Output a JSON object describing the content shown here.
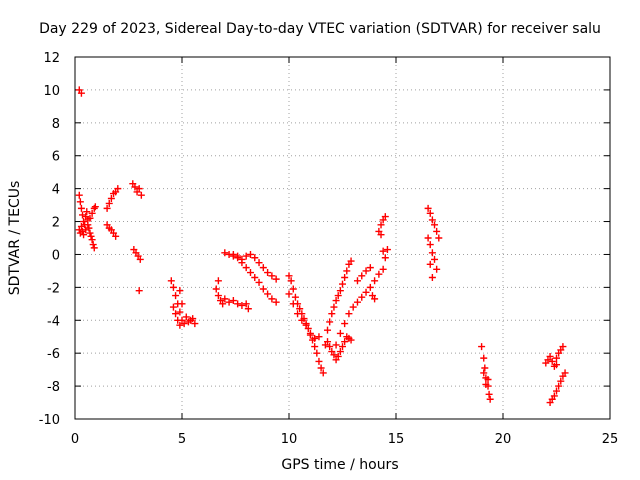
{
  "chart_data": {
    "type": "scatter",
    "title": "Day 229 of 2023, Sidereal Day-to-day VTEC variation (SDTVAR) for receiver salu",
    "xlabel": "GPS time / hours",
    "ylabel": "SDTVAR / TECUs",
    "xlim": [
      0,
      25
    ],
    "ylim": [
      -10,
      12
    ],
    "xticks": [
      0,
      5,
      10,
      15,
      20,
      25
    ],
    "yticks": [
      -10,
      -8,
      -6,
      -4,
      -2,
      0,
      2,
      4,
      6,
      8,
      10,
      12
    ],
    "grid": true,
    "marker": "+",
    "color": "#ff0000",
    "series": [
      {
        "name": "SDTVAR",
        "points": [
          [
            0.2,
            10.0
          ],
          [
            0.3,
            9.8
          ],
          [
            0.2,
            3.6
          ],
          [
            0.25,
            3.2
          ],
          [
            0.3,
            2.8
          ],
          [
            0.35,
            2.4
          ],
          [
            0.4,
            2.0
          ],
          [
            0.45,
            1.8
          ],
          [
            0.5,
            2.3
          ],
          [
            0.55,
            2.6
          ],
          [
            0.6,
            2.1
          ],
          [
            0.65,
            1.6
          ],
          [
            0.7,
            1.3
          ],
          [
            0.75,
            1.1
          ],
          [
            0.8,
            0.9
          ],
          [
            0.85,
            0.6
          ],
          [
            0.9,
            0.4
          ],
          [
            0.2,
            1.5
          ],
          [
            0.25,
            1.3
          ],
          [
            0.3,
            1.7
          ],
          [
            0.35,
            1.4
          ],
          [
            0.4,
            1.2
          ],
          [
            0.5,
            1.5
          ],
          [
            0.6,
            1.8
          ],
          [
            0.7,
            2.2
          ],
          [
            0.8,
            2.5
          ],
          [
            0.9,
            2.8
          ],
          [
            0.95,
            2.9
          ],
          [
            1.5,
            2.8
          ],
          [
            1.6,
            3.1
          ],
          [
            1.7,
            3.4
          ],
          [
            1.8,
            3.7
          ],
          [
            1.9,
            3.8
          ],
          [
            2.0,
            4.0
          ],
          [
            1.5,
            1.8
          ],
          [
            1.6,
            1.6
          ],
          [
            1.7,
            1.5
          ],
          [
            1.8,
            1.3
          ],
          [
            1.9,
            1.1
          ],
          [
            2.7,
            4.3
          ],
          [
            2.8,
            4.1
          ],
          [
            2.9,
            3.8
          ],
          [
            3.0,
            4.0
          ],
          [
            3.1,
            3.6
          ],
          [
            2.75,
            0.3
          ],
          [
            2.85,
            0.1
          ],
          [
            2.95,
            -0.1
          ],
          [
            3.05,
            -0.3
          ],
          [
            3.0,
            -2.2
          ],
          [
            4.5,
            -1.6
          ],
          [
            4.6,
            -2.0
          ],
          [
            4.7,
            -2.5
          ],
          [
            4.8,
            -3.0
          ],
          [
            4.9,
            -3.5
          ],
          [
            5.0,
            -4.0
          ],
          [
            5.1,
            -4.2
          ],
          [
            5.2,
            -3.8
          ],
          [
            5.3,
            -4.1
          ],
          [
            5.4,
            -4.0
          ],
          [
            5.5,
            -3.9
          ],
          [
            5.6,
            -4.2
          ],
          [
            4.6,
            -3.2
          ],
          [
            4.7,
            -3.6
          ],
          [
            4.8,
            -4.0
          ],
          [
            4.9,
            -4.3
          ],
          [
            5.0,
            -3.0
          ],
          [
            4.9,
            -2.2
          ],
          [
            6.6,
            -2.1
          ],
          [
            6.7,
            -2.5
          ],
          [
            6.8,
            -2.8
          ],
          [
            6.9,
            -3.0
          ],
          [
            7.0,
            -2.7
          ],
          [
            7.2,
            -2.9
          ],
          [
            7.4,
            -2.8
          ],
          [
            7.6,
            -3.0
          ],
          [
            7.8,
            -3.1
          ],
          [
            8.0,
            -3.0
          ],
          [
            8.1,
            -3.3
          ],
          [
            6.7,
            -1.6
          ],
          [
            7.0,
            0.1
          ],
          [
            7.2,
            0.0
          ],
          [
            7.4,
            -0.1
          ],
          [
            7.6,
            -0.2
          ],
          [
            7.8,
            -0.5
          ],
          [
            8.0,
            -0.8
          ],
          [
            8.2,
            -1.1
          ],
          [
            8.4,
            -1.4
          ],
          [
            8.6,
            -1.7
          ],
          [
            8.8,
            -2.1
          ],
          [
            9.0,
            -2.4
          ],
          [
            9.2,
            -2.7
          ],
          [
            9.4,
            -2.9
          ],
          [
            7.4,
            0.0
          ],
          [
            7.6,
            -0.1
          ],
          [
            7.8,
            -0.3
          ],
          [
            8.0,
            -0.1
          ],
          [
            8.2,
            0.0
          ],
          [
            8.4,
            -0.2
          ],
          [
            8.6,
            -0.5
          ],
          [
            8.8,
            -0.8
          ],
          [
            9.0,
            -1.1
          ],
          [
            9.2,
            -1.3
          ],
          [
            9.4,
            -1.5
          ],
          [
            10.0,
            -1.3
          ],
          [
            10.1,
            -1.6
          ],
          [
            10.2,
            -2.1
          ],
          [
            10.3,
            -2.6
          ],
          [
            10.4,
            -3.0
          ],
          [
            10.5,
            -3.3
          ],
          [
            10.6,
            -3.6
          ],
          [
            10.7,
            -3.9
          ],
          [
            10.8,
            -4.2
          ],
          [
            10.9,
            -4.5
          ],
          [
            11.0,
            -4.8
          ],
          [
            11.1,
            -5.2
          ],
          [
            11.2,
            -5.6
          ],
          [
            11.3,
            -6.0
          ],
          [
            11.4,
            -6.5
          ],
          [
            11.5,
            -6.9
          ],
          [
            11.6,
            -7.2
          ],
          [
            10.0,
            -2.4
          ],
          [
            10.2,
            -3.0
          ],
          [
            10.4,
            -3.6
          ],
          [
            10.6,
            -4.0
          ],
          [
            10.8,
            -4.3
          ],
          [
            11.0,
            -4.9
          ],
          [
            11.2,
            -5.1
          ],
          [
            11.4,
            -5.0
          ],
          [
            11.7,
            -5.5
          ],
          [
            11.8,
            -5.3
          ],
          [
            11.9,
            -5.6
          ],
          [
            12.0,
            -5.9
          ],
          [
            12.1,
            -6.1
          ],
          [
            12.2,
            -6.4
          ],
          [
            12.3,
            -6.2
          ],
          [
            12.4,
            -5.9
          ],
          [
            12.5,
            -5.6
          ],
          [
            12.6,
            -5.3
          ],
          [
            12.7,
            -5.0
          ],
          [
            12.8,
            -5.1
          ],
          [
            12.9,
            -5.2
          ],
          [
            11.8,
            -4.6
          ],
          [
            11.9,
            -4.1
          ],
          [
            12.0,
            -3.6
          ],
          [
            12.1,
            -3.2
          ],
          [
            12.2,
            -2.8
          ],
          [
            12.3,
            -2.5
          ],
          [
            12.4,
            -2.2
          ],
          [
            12.5,
            -1.8
          ],
          [
            12.6,
            -1.4
          ],
          [
            12.7,
            -1.0
          ],
          [
            12.8,
            -0.6
          ],
          [
            12.9,
            -0.4
          ],
          [
            12.2,
            -5.5
          ],
          [
            12.4,
            -4.8
          ],
          [
            12.6,
            -4.2
          ],
          [
            12.8,
            -3.6
          ],
          [
            13.0,
            -3.2
          ],
          [
            13.2,
            -2.9
          ],
          [
            13.4,
            -2.6
          ],
          [
            13.6,
            -2.3
          ],
          [
            13.8,
            -2.0
          ],
          [
            14.0,
            -1.6
          ],
          [
            14.2,
            -1.2
          ],
          [
            14.4,
            -0.9
          ],
          [
            13.2,
            -1.6
          ],
          [
            13.4,
            -1.3
          ],
          [
            13.6,
            -1.0
          ],
          [
            13.8,
            -0.8
          ],
          [
            14.0,
            -2.7
          ],
          [
            13.9,
            -2.5
          ],
          [
            14.2,
            1.4
          ],
          [
            14.3,
            1.8
          ],
          [
            14.4,
            2.1
          ],
          [
            14.5,
            2.3
          ],
          [
            14.3,
            1.2
          ],
          [
            14.4,
            0.2
          ],
          [
            14.5,
            -0.2
          ],
          [
            14.6,
            0.3
          ],
          [
            16.5,
            2.8
          ],
          [
            16.6,
            2.5
          ],
          [
            16.7,
            2.1
          ],
          [
            16.8,
            1.8
          ],
          [
            16.9,
            1.4
          ],
          [
            17.0,
            1.0
          ],
          [
            16.5,
            1.0
          ],
          [
            16.6,
            0.6
          ],
          [
            16.7,
            0.1
          ],
          [
            16.8,
            -0.3
          ],
          [
            16.9,
            -0.9
          ],
          [
            16.7,
            -1.4
          ],
          [
            16.6,
            -0.6
          ],
          [
            19.0,
            -5.6
          ],
          [
            19.1,
            -6.3
          ],
          [
            19.15,
            -6.9
          ],
          [
            19.2,
            -7.5
          ],
          [
            19.3,
            -8.0
          ],
          [
            19.35,
            -8.5
          ],
          [
            19.4,
            -8.8
          ],
          [
            19.1,
            -7.2
          ],
          [
            19.2,
            -7.9
          ],
          [
            19.3,
            -7.6
          ],
          [
            22.0,
            -6.6
          ],
          [
            22.1,
            -6.4
          ],
          [
            22.2,
            -6.2
          ],
          [
            22.3,
            -6.5
          ],
          [
            22.4,
            -6.8
          ],
          [
            22.5,
            -6.3
          ],
          [
            22.6,
            -6.0
          ],
          [
            22.7,
            -5.8
          ],
          [
            22.8,
            -5.6
          ],
          [
            22.5,
            -6.7
          ],
          [
            22.2,
            -9.0
          ],
          [
            22.3,
            -8.8
          ],
          [
            22.4,
            -8.6
          ],
          [
            22.5,
            -8.3
          ],
          [
            22.6,
            -8.0
          ],
          [
            22.7,
            -7.7
          ],
          [
            22.8,
            -7.4
          ],
          [
            22.9,
            -7.2
          ]
        ]
      }
    ]
  }
}
